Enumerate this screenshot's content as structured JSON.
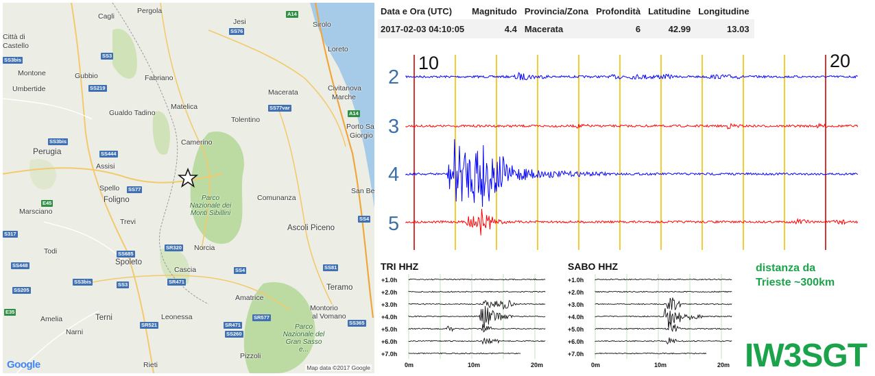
{
  "table": {
    "headers": [
      "Data e Ora (UTC)",
      "Magnitudo",
      "Provincia/Zona",
      "Profondità",
      "Latitudine",
      "Longitudine"
    ],
    "row": [
      "2017-02-03 04:10:05",
      "4.4",
      "Macerata",
      "6",
      "42.99",
      "13.03"
    ]
  },
  "map": {
    "places": [
      "Cagli",
      "Pergola",
      "Jesi",
      "Sirolo",
      "Città di",
      "Castello",
      "Gubbio",
      "Fabriano",
      "Loreto",
      "Montone",
      "Umbertide",
      "Macerata",
      "Civitanova",
      "Marche",
      "Gualdo Tadino",
      "Matelica",
      "Tolentino",
      "Porto San",
      "Giorgio",
      "Perugia",
      "Camerino",
      "Assisi",
      "San Bened",
      "Spello",
      "Foligno",
      "Comunanza",
      "Marsciano",
      "Trevi",
      "Ascoli Piceno",
      "Todi",
      "Norcia",
      "Spoleto",
      "Cascia",
      "Teramo",
      "Amatrice",
      "Montorio",
      "al Vomano",
      "Amelia",
      "Terni",
      "Leonessa",
      "Narni",
      "Pizzoli",
      "Rieti"
    ],
    "parks": [
      "Parco Nazionale dei Monti Sibillini",
      "Parco Nazionale del Gran Sasso e..."
    ],
    "roads": [
      "A14",
      "SS76",
      "SS3",
      "SS3bis",
      "SS219",
      "SS77var",
      "A14",
      "SS3bis",
      "SS444",
      "SS77",
      "E45",
      "SS4",
      "S317",
      "SS685",
      "SR320",
      "SS448",
      "SS3bis",
      "SS3",
      "SR471",
      "SS4",
      "SS81",
      "SS205",
      "E35",
      "SR521",
      "SR471",
      "SS260",
      "SR577",
      "SS365"
    ],
    "credit": "Map data ©2017 Google",
    "logo": "Google",
    "epicenter_icon": "star-outline-icon"
  },
  "helicorder_main": {
    "labels": {
      "left_time": "10",
      "right_time": "20"
    },
    "channels": [
      {
        "label": "2",
        "color": "#0000ff"
      },
      {
        "label": "3",
        "color": "#ff0000"
      },
      {
        "label": "4",
        "color": "#0000ff"
      },
      {
        "label": "5",
        "color": "#ff0000"
      }
    ],
    "label_color": "#3a6fa8",
    "red_line_color": "#cc0000",
    "yellow_line_color": "#f0c000"
  },
  "stations": [
    {
      "name": "TRI HHZ",
      "rows": [
        "+1.0h",
        "+2.0h",
        "+3.0h",
        "+4.0h",
        "+5.0h",
        "+6.0h",
        "+7.0h"
      ],
      "x_ticks": [
        "0m",
        "10m",
        "20m"
      ]
    },
    {
      "name": "SABO HHZ",
      "rows": [
        "+1.0h",
        "+2.0h",
        "+3.0h",
        "+4.0h",
        "+5.0h",
        "+6.0h",
        "+7.0h"
      ],
      "x_ticks": [
        "0m",
        "10m",
        "20m"
      ]
    }
  ],
  "annotation": {
    "line1": "distanza da",
    "line2": "Trieste ~300km",
    "color": "#1aa34a"
  },
  "callsign": "IW3SGT"
}
